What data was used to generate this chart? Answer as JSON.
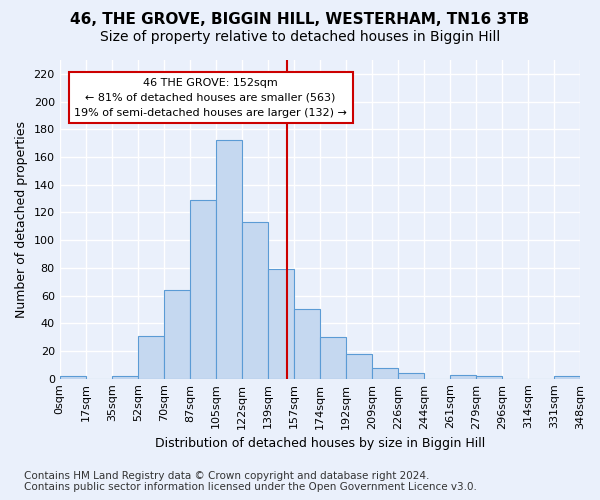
{
  "title": "46, THE GROVE, BIGGIN HILL, WESTERHAM, TN16 3TB",
  "subtitle": "Size of property relative to detached houses in Biggin Hill",
  "xlabel": "Distribution of detached houses by size in Biggin Hill",
  "ylabel": "Number of detached properties",
  "bin_labels": [
    "0sqm",
    "17sqm",
    "35sqm",
    "52sqm",
    "70sqm",
    "87sqm",
    "105sqm",
    "122sqm",
    "139sqm",
    "157sqm",
    "174sqm",
    "192sqm",
    "209sqm",
    "226sqm",
    "244sqm",
    "261sqm",
    "279sqm",
    "296sqm",
    "314sqm",
    "331sqm",
    "348sqm"
  ],
  "bar_heights": [
    2,
    0,
    2,
    31,
    64,
    129,
    172,
    113,
    79,
    50,
    30,
    18,
    8,
    4,
    0,
    3,
    2,
    0,
    0,
    2
  ],
  "bar_color": "#c5d8f0",
  "bar_edge_color": "#5b9bd5",
  "vline_color": "#cc0000",
  "annotation_line1": "46 THE GROVE: 152sqm",
  "annotation_line2": "← 81% of detached houses are smaller (563)",
  "annotation_line3": "19% of semi-detached houses are larger (132) →",
  "annotation_box_edge": "#cc0000",
  "ylim": [
    0,
    230
  ],
  "yticks": [
    0,
    20,
    40,
    60,
    80,
    100,
    120,
    140,
    160,
    180,
    200,
    220
  ],
  "footnote1": "Contains HM Land Registry data © Crown copyright and database right 2024.",
  "footnote2": "Contains public sector information licensed under the Open Government Licence v3.0.",
  "bg_color": "#eaf0fb",
  "grid_color": "#ffffff",
  "title_fontsize": 11,
  "subtitle_fontsize": 10,
  "axis_label_fontsize": 9,
  "tick_fontsize": 8,
  "footnote_fontsize": 7.5,
  "annot_fontsize": 8
}
